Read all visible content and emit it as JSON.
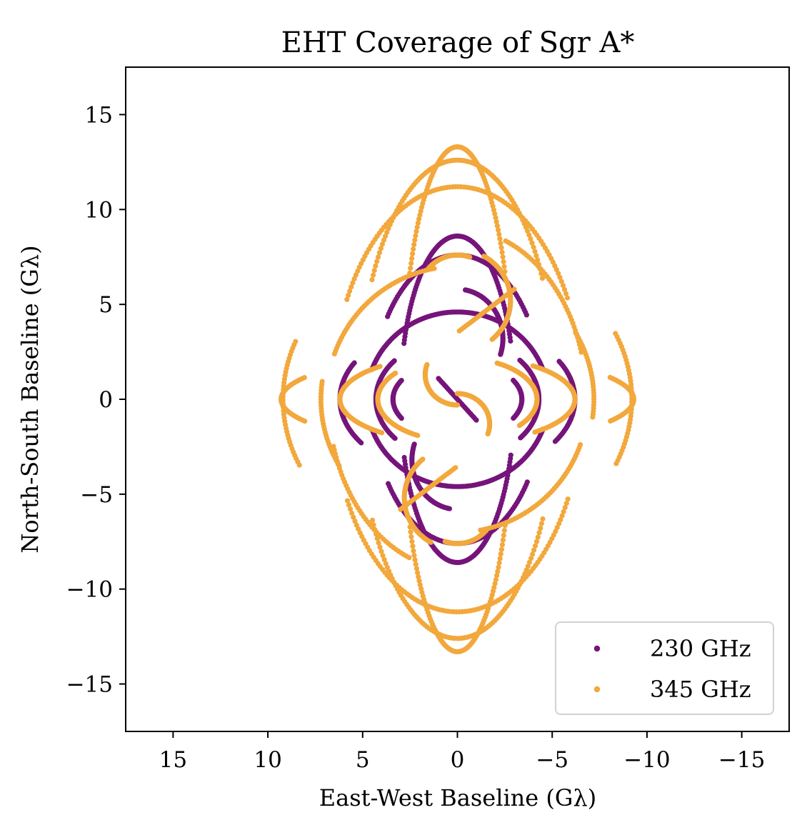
{
  "chart_data": {
    "type": "scatter",
    "title": "EHT Coverage of Sgr A*",
    "xlabel": "East-West Baseline (Gλ)",
    "ylabel": "North-South Baseline (Gλ)",
    "xlim": [
      17.5,
      -17.5
    ],
    "ylim": [
      -17.5,
      17.5
    ],
    "x_ticks": [
      15,
      10,
      5,
      0,
      -5,
      -10,
      -15
    ],
    "y_ticks": [
      15,
      10,
      5,
      0,
      -5,
      -10,
      -15
    ],
    "x_tick_labels": [
      "15",
      "10",
      "5",
      "0",
      "−5",
      "−10",
      "−15"
    ],
    "y_tick_labels": [
      "15",
      "10",
      "5",
      "0",
      "−5",
      "−10",
      "−15"
    ],
    "grid": false,
    "legend_position": "lower-right",
    "series": [
      {
        "name": "230 GHz",
        "color": "#75147a",
        "arcs": [
          {
            "a": 3.0,
            "b": 8.6,
            "cy": 0.0,
            "t0": 20,
            "t1": 160
          },
          {
            "a": 3.0,
            "b": 8.6,
            "cy": 0.0,
            "t0": 200,
            "t1": 340
          },
          {
            "a": 4.5,
            "b": 7.6,
            "cy": 0.0,
            "t0": 35,
            "t1": 145
          },
          {
            "a": 4.5,
            "b": 7.6,
            "cy": 0.0,
            "t0": 215,
            "t1": 325
          },
          {
            "a": 4.8,
            "b": 4.6,
            "cy": 0.0,
            "t0": 20,
            "t1": 160
          },
          {
            "a": 4.8,
            "b": 4.6,
            "cy": 0.0,
            "t0": 200,
            "t1": 340
          },
          {
            "a": 6.2,
            "b": 4.0,
            "cy": 0.0,
            "t0": 150,
            "t1": 215
          },
          {
            "a": 6.2,
            "b": 4.0,
            "cy": 0.0,
            "t0": -35,
            "t1": 30
          },
          {
            "a": 4.3,
            "b": 3.2,
            "cy": 0.0,
            "t0": 140,
            "t1": 220
          },
          {
            "a": 4.3,
            "b": 3.2,
            "cy": 0.0,
            "t0": -40,
            "t1": 40
          },
          {
            "a": 3.4,
            "b": 2.0,
            "cy": 0.0,
            "t0": 150,
            "t1": 210
          },
          {
            "a": 3.4,
            "b": 2.0,
            "cy": 0.0,
            "t0": -30,
            "t1": 30
          },
          {
            "a": 2.4,
            "b": 2.6,
            "cy": 3.2,
            "t0": 100,
            "t1": 200
          },
          {
            "a": 2.4,
            "b": 2.6,
            "cy": -3.2,
            "t0": 280,
            "t1": 380
          }
        ],
        "lines": [
          {
            "x0": 1.0,
            "y0": 1.1,
            "x1": -1.0,
            "y1": -1.1
          }
        ]
      },
      {
        "name": "345 GHz",
        "color": "#f2a83c",
        "arcs": [
          {
            "a": 2.9,
            "b": 13.3,
            "cy": 0.0,
            "t0": 30,
            "t1": 150
          },
          {
            "a": 2.9,
            "b": 13.3,
            "cy": 0.0,
            "t0": 210,
            "t1": 330
          },
          {
            "a": 5.2,
            "b": 12.6,
            "cy": 0.0,
            "t0": 30,
            "t1": 150
          },
          {
            "a": 5.2,
            "b": 12.6,
            "cy": 0.0,
            "t0": 210,
            "t1": 330
          },
          {
            "a": 6.6,
            "b": 11.2,
            "cy": 0.0,
            "t0": 28,
            "t1": 152
          },
          {
            "a": 6.6,
            "b": 11.2,
            "cy": 0.0,
            "t0": 208,
            "t1": 332
          },
          {
            "a": 9.2,
            "b": 8.2,
            "cy": 0.0,
            "t0": -25,
            "t1": 22
          },
          {
            "a": 9.2,
            "b": 8.2,
            "cy": 0.0,
            "t0": 155,
            "t1": 205
          },
          {
            "a": 6.9,
            "b": 7.0,
            "cy": 0.0,
            "t0": 20,
            "t1": 80
          },
          {
            "a": 6.9,
            "b": 7.0,
            "cy": 0.0,
            "t0": 200,
            "t1": 260
          },
          {
            "a": 6.8,
            "b": 9.0,
            "cy": 0.0,
            "t0": 112,
            "t1": 165
          },
          {
            "a": 6.8,
            "b": 9.0,
            "cy": 0.0,
            "t0": 292,
            "t1": 345
          },
          {
            "a": 7.2,
            "b": 7.0,
            "cy": 0.0,
            "t0": -30,
            "t1": 8
          },
          {
            "a": 7.2,
            "b": 7.0,
            "cy": 0.0,
            "t0": 150,
            "t1": 188
          },
          {
            "a": 6.2,
            "b": 2.3,
            "cy": 0.0,
            "t0": 130,
            "t1": 230
          },
          {
            "a": 6.2,
            "b": 2.3,
            "cy": 0.0,
            "t0": -50,
            "t1": 50
          },
          {
            "a": 9.3,
            "b": 2.3,
            "cy": 0.0,
            "t0": 150,
            "t1": 210
          },
          {
            "a": 9.3,
            "b": 2.3,
            "cy": 0.0,
            "t0": -30,
            "t1": 30
          },
          {
            "a": 4.2,
            "b": 2.2,
            "cy": 0.0,
            "t0": 120,
            "t1": 220
          },
          {
            "a": 4.2,
            "b": 2.2,
            "cy": 0.0,
            "t0": -60,
            "t1": 40
          },
          {
            "a": 2.8,
            "b": 2.7,
            "cy": 5.2,
            "t0": 120,
            "t1": 230
          },
          {
            "a": 2.8,
            "b": 2.7,
            "cy": -5.2,
            "t0": 300,
            "t1": 410
          },
          {
            "a": 2.0,
            "b": 2.0,
            "cy": 5.6,
            "t0": 40,
            "t1": 110
          },
          {
            "a": 2.0,
            "b": 2.0,
            "cy": -5.6,
            "t0": 220,
            "t1": 290
          },
          {
            "a": 1.7,
            "b": 1.6,
            "cy": -1.3,
            "t0": 90,
            "t1": 200
          },
          {
            "a": 1.7,
            "b": 1.6,
            "cy": 1.3,
            "t0": 270,
            "t1": 380
          }
        ],
        "lines": [
          {
            "x0": 3.0,
            "y0": -5.8,
            "x1": 0.1,
            "y1": -3.6
          },
          {
            "x0": -3.0,
            "y0": 5.8,
            "x1": -0.1,
            "y1": 3.6
          }
        ]
      }
    ]
  }
}
